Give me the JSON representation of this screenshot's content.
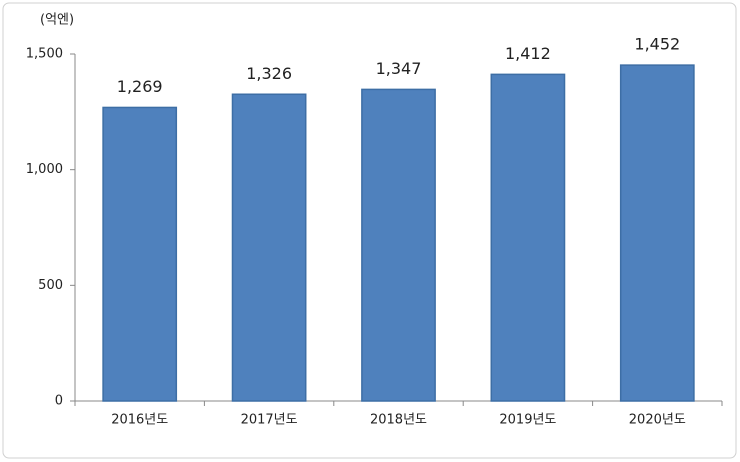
{
  "chart_data": {
    "type": "bar",
    "y_unit": "(억엔)",
    "categories": [
      "2016년도",
      "2017년도",
      "2018년도",
      "2019년도",
      "2020년도"
    ],
    "values": [
      1269,
      1326,
      1347,
      1412,
      1452
    ],
    "value_labels": [
      "1,269",
      "1,326",
      "1,347",
      "1,412",
      "1,452"
    ],
    "color": "#4f81bd",
    "ylim": [
      0,
      1500
    ],
    "yticks": [
      0,
      500,
      {
        "value": 1000,
        "label": "1,000"
      },
      {
        "value": 1500,
        "label": "1,500"
      }
    ],
    "grid": false
  }
}
